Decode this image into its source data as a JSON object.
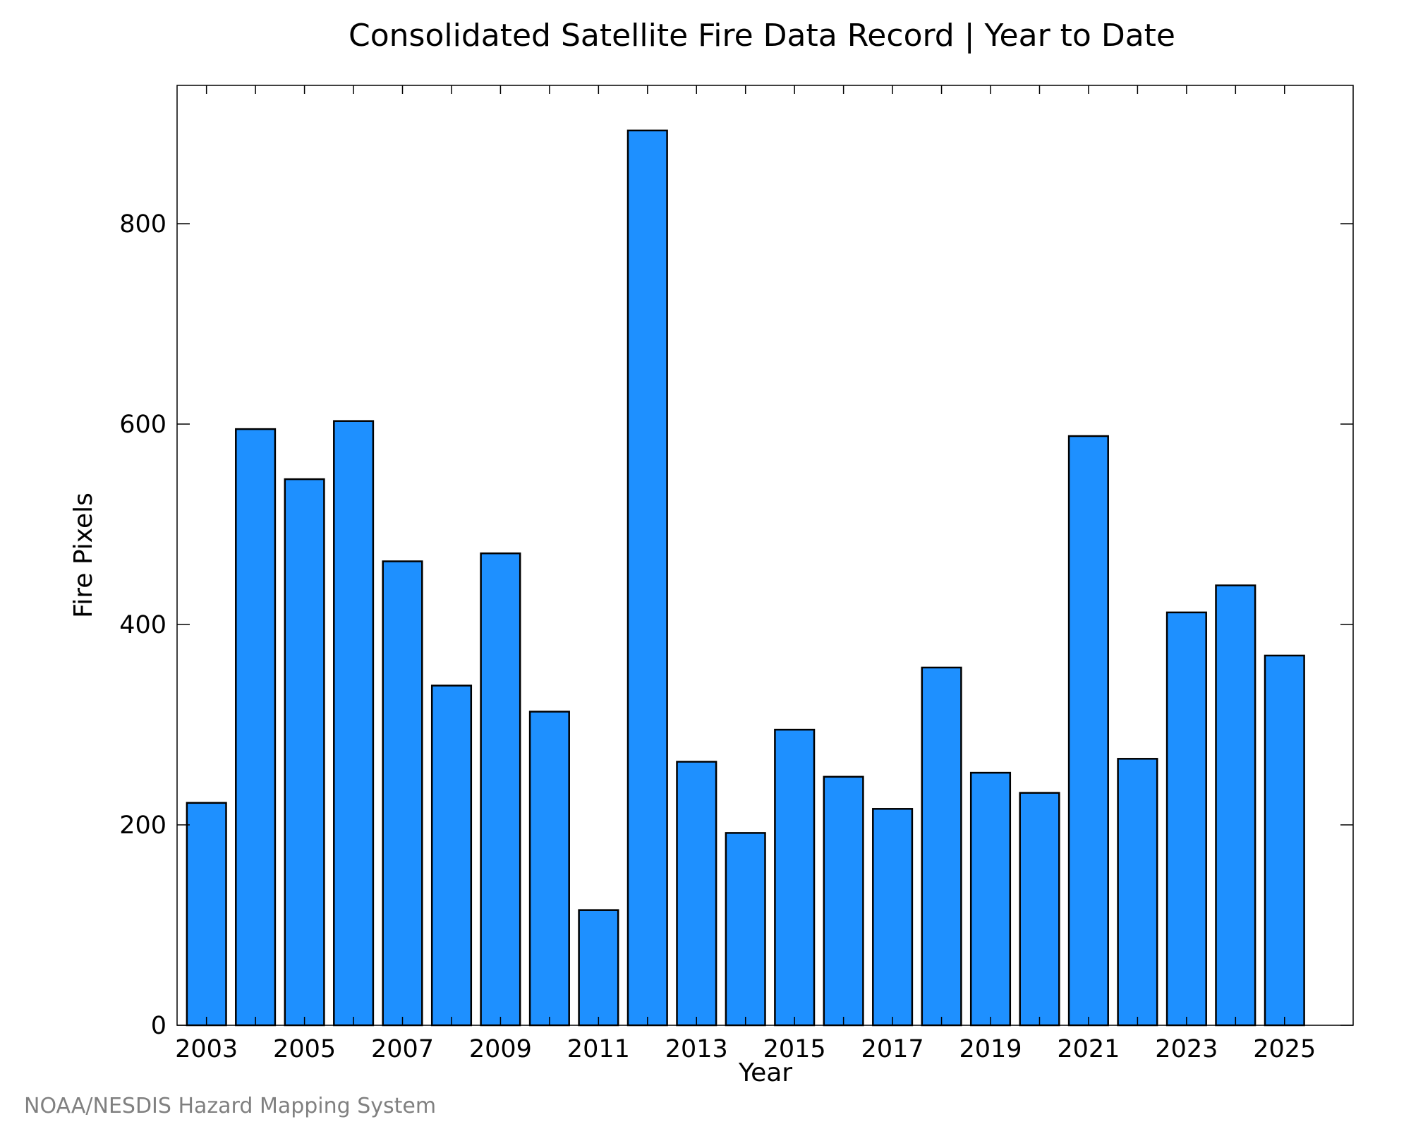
{
  "chart_data": {
    "type": "bar",
    "title": "Consolidated Satellite Fire Data Record | Year to Date",
    "xlabel": "Year",
    "ylabel": "Fire Pixels",
    "categories": [
      "2003",
      "2004",
      "2005",
      "2006",
      "2007",
      "2008",
      "2009",
      "2010",
      "2011",
      "2012",
      "2013",
      "2014",
      "2015",
      "2016",
      "2017",
      "2018",
      "2019",
      "2020",
      "2021",
      "2022",
      "2023",
      "2024",
      "2025"
    ],
    "values": [
      222,
      595,
      545,
      603,
      463,
      339,
      471,
      313,
      115,
      893,
      263,
      192,
      295,
      248,
      216,
      357,
      252,
      232,
      588,
      266,
      412,
      439,
      369
    ],
    "x_tick_labels": [
      "2003",
      "2005",
      "2007",
      "2009",
      "2011",
      "2013",
      "2015",
      "2017",
      "2019",
      "2021",
      "2023",
      "2025"
    ],
    "y_ticks": [
      0,
      200,
      400,
      600,
      800
    ],
    "ylim": [
      0,
      938
    ],
    "xlim": [
      2002.4,
      2026.4
    ],
    "grid": false,
    "legend": "none",
    "bar_color": "#1e90ff",
    "bar_edge_color": "#000000"
  },
  "credit": "NOAA/NESDIS Hazard Mapping System"
}
